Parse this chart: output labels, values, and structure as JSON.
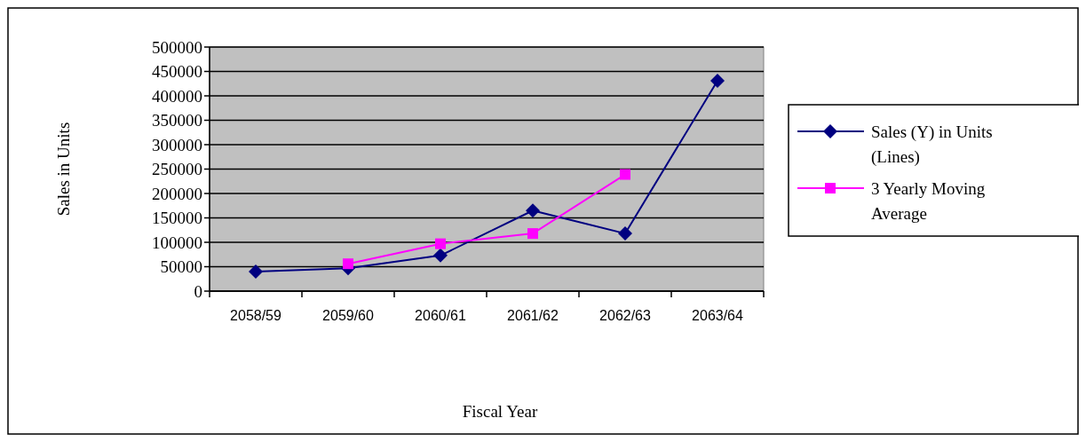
{
  "chart_data": {
    "type": "line",
    "xlabel": "Fiscal Year",
    "ylabel": "Sales in Units",
    "categories": [
      "2058/59",
      "2059/60",
      "2060/61",
      "2061/62",
      "2062/63",
      "2063/64"
    ],
    "series": [
      {
        "name": "Sales (Y) in Units (Lines)",
        "color": "#000080",
        "marker": "diamond",
        "values": [
          40000,
          47000,
          73000,
          165000,
          118000,
          431000
        ]
      },
      {
        "name": "3 Yearly Moving Average",
        "color": "#ff00ff",
        "marker": "square",
        "values": [
          null,
          56000,
          97000,
          118000,
          239000,
          null
        ]
      }
    ],
    "ylim": [
      0,
      500000
    ],
    "yticks": [
      0,
      50000,
      100000,
      150000,
      200000,
      250000,
      300000,
      350000,
      400000,
      450000,
      500000
    ],
    "grid": "y",
    "legend": "right",
    "line_style": "solid"
  }
}
